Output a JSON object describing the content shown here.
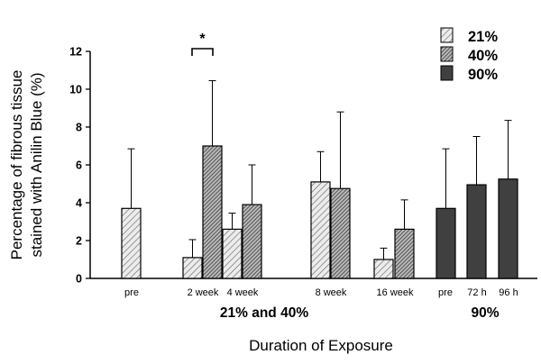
{
  "chart_data": {
    "type": "bar",
    "ylabel_line1": "Percentage of fibrous tissue",
    "ylabel_line2": "stained with Anilin Blue (%)",
    "xlabel": "Duration of Exposure",
    "ylim": [
      0,
      12
    ],
    "yticks": [
      0,
      2,
      4,
      6,
      8,
      10,
      12
    ],
    "group_labels": [
      "21% and 40%",
      "90%"
    ],
    "categories": [
      "pre",
      "2 week",
      "4 week",
      "8 week",
      "16 week",
      "pre",
      "72 h",
      "96 h"
    ],
    "series": [
      {
        "name": "21%",
        "color": "#e8e8e8",
        "pattern": "diagonal-light",
        "values": [
          3.7,
          1.1,
          2.6,
          5.1,
          1.0,
          null,
          null,
          null
        ],
        "errors": [
          3.15,
          0.95,
          0.85,
          1.6,
          0.6,
          null,
          null,
          null
        ]
      },
      {
        "name": "40%",
        "color": "#9a9a9a",
        "pattern": "diagonal-dense",
        "values": [
          null,
          7.0,
          3.9,
          4.75,
          2.6,
          null,
          null,
          null
        ],
        "errors": [
          null,
          3.45,
          2.1,
          4.05,
          1.55,
          null,
          null,
          null
        ]
      },
      {
        "name": "90%",
        "color": "#404040",
        "pattern": "solid",
        "values": [
          null,
          null,
          null,
          null,
          null,
          3.7,
          4.95,
          5.25
        ],
        "errors": [
          null,
          null,
          null,
          null,
          null,
          3.15,
          2.55,
          3.1
        ]
      }
    ],
    "annotations": [
      {
        "text": "*",
        "category_index": 1
      }
    ],
    "legend_position": "top-right",
    "grid": false
  }
}
